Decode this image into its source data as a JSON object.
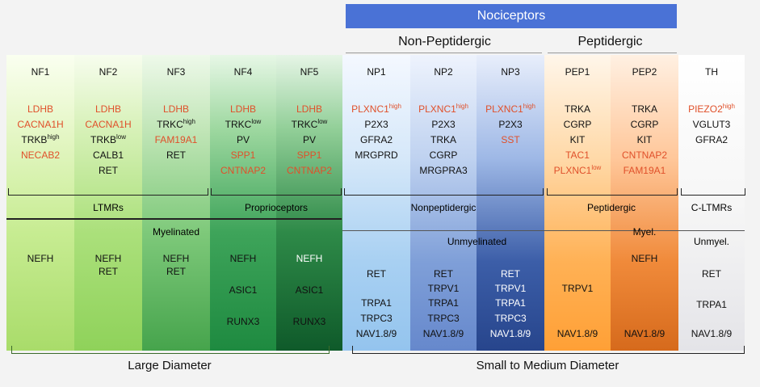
{
  "top": {
    "nociceptors": "Nociceptors",
    "non_peptidergic": "Non-Peptidergic",
    "peptidergic": "Peptidergic",
    "nociceptor_color": "#4a72d6"
  },
  "columns": [
    {
      "id": "NF1",
      "markers": [
        {
          "t": "LDHB",
          "c": "red"
        },
        {
          "t": "CACNA1H",
          "c": "red"
        },
        {
          "t": "TRKB",
          "sup": "high",
          "c": "blk"
        },
        {
          "t": "NECAB2",
          "c": "red"
        }
      ],
      "lower": [
        "NEFH"
      ]
    },
    {
      "id": "NF2",
      "markers": [
        {
          "t": "LDHB",
          "c": "red"
        },
        {
          "t": "CACNA1H",
          "c": "red"
        },
        {
          "t": "TRKB",
          "sup": "low",
          "c": "blk"
        },
        {
          "t": "CALB1",
          "c": "blk"
        },
        {
          "t": "RET",
          "c": "blk"
        }
      ],
      "lower": [
        "NEFH",
        "RET"
      ]
    },
    {
      "id": "NF3",
      "markers": [
        {
          "t": "LDHB",
          "c": "red"
        },
        {
          "t": "TRKC",
          "sup": "high",
          "c": "blk"
        },
        {
          "t": "FAM19A1",
          "c": "red"
        },
        {
          "t": "RET",
          "c": "blk"
        }
      ],
      "lower": [
        "NEFH",
        "RET"
      ]
    },
    {
      "id": "NF4",
      "markers": [
        {
          "t": "LDHB",
          "c": "red"
        },
        {
          "t": "TRKC",
          "sup": "low",
          "c": "blk"
        },
        {
          "t": "PV",
          "c": "blk"
        },
        {
          "t": "SPP1",
          "c": "red"
        },
        {
          "t": "CNTNAP2",
          "c": "red"
        }
      ],
      "lower": [
        "NEFH",
        "ASIC1",
        "RUNX3"
      ]
    },
    {
      "id": "NF5",
      "markers": [
        {
          "t": "LDHB",
          "c": "red"
        },
        {
          "t": "TRKC",
          "sup": "low",
          "c": "blk"
        },
        {
          "t": "PV",
          "c": "blk"
        },
        {
          "t": "SPP1",
          "c": "red"
        },
        {
          "t": "CNTNAP2",
          "c": "red"
        }
      ],
      "lower": [
        "NEFH",
        "ASIC1",
        "RUNX3"
      ]
    },
    {
      "id": "NP1",
      "markers": [
        {
          "t": "PLXNC1",
          "sup": "high",
          "c": "red"
        },
        {
          "t": "P2X3",
          "c": "blk"
        },
        {
          "t": "GFRA2",
          "c": "blk"
        },
        {
          "t": "MRGPRD",
          "c": "blk"
        }
      ],
      "lower": [
        "RET",
        "TRPA1",
        "TRPC3",
        "NAV1.8/9"
      ]
    },
    {
      "id": "NP2",
      "markers": [
        {
          "t": "PLXNC1",
          "sup": "high",
          "c": "red"
        },
        {
          "t": "P2X3",
          "c": "blk"
        },
        {
          "t": "TRKA",
          "c": "blk"
        },
        {
          "t": "CGRP",
          "c": "blk"
        },
        {
          "t": "MRGPRA3",
          "c": "blk"
        }
      ],
      "lower": [
        "RET",
        "TRPV1",
        "TRPA1",
        "TRPC3",
        "NAV1.8/9"
      ]
    },
    {
      "id": "NP3",
      "markers": [
        {
          "t": "PLXNC1",
          "sup": "high",
          "c": "red"
        },
        {
          "t": "P2X3",
          "c": "blk"
        },
        {
          "t": "SST",
          "c": "red"
        }
      ],
      "lower": [
        "RET",
        "TRPV1",
        "TRPA1",
        "TRPC3",
        "NAV1.8/9"
      ]
    },
    {
      "id": "PEP1",
      "markers": [
        {
          "t": "TRKA",
          "c": "blk"
        },
        {
          "t": "CGRP",
          "c": "blk"
        },
        {
          "t": "KIT",
          "c": "blk"
        },
        {
          "t": "TAC1",
          "c": "red"
        },
        {
          "t": "PLXNC1",
          "sup": "low",
          "c": "red"
        }
      ],
      "lower": [
        "TRPV1",
        "NAV1.8/9"
      ]
    },
    {
      "id": "PEP2",
      "markers": [
        {
          "t": "TRKA",
          "c": "blk"
        },
        {
          "t": "CGRP",
          "c": "blk"
        },
        {
          "t": "KIT",
          "c": "blk"
        },
        {
          "t": "CNTNAP2",
          "c": "red"
        },
        {
          "t": "FAM19A1",
          "c": "red"
        }
      ],
      "lower": [
        "NEFH",
        "NAV1.8/9"
      ]
    },
    {
      "id": "TH",
      "markers": [
        {
          "t": "PIEZO2",
          "sup": "high",
          "c": "red"
        },
        {
          "t": "VGLUT3",
          "c": "blk"
        },
        {
          "t": "GFRA2",
          "c": "blk"
        }
      ],
      "lower": [
        "RET",
        "TRPA1",
        "NAV1.8/9"
      ]
    }
  ],
  "groups": {
    "ltmrs": "LTMRs",
    "proprioceptors": "Proprioceptors",
    "nonpeptidergic": "Nonpeptidergic",
    "peptidergic": "Peptidergic",
    "c_ltmrs": "C-LTMRs"
  },
  "fiber": {
    "myelinated": "Myelinated",
    "unmyelinated": "Unmyelinated",
    "myel": "Myel.",
    "unmyel": "Unmyel."
  },
  "bottom": {
    "large": "Large Diameter",
    "small": "Small to Medium Diameter"
  }
}
